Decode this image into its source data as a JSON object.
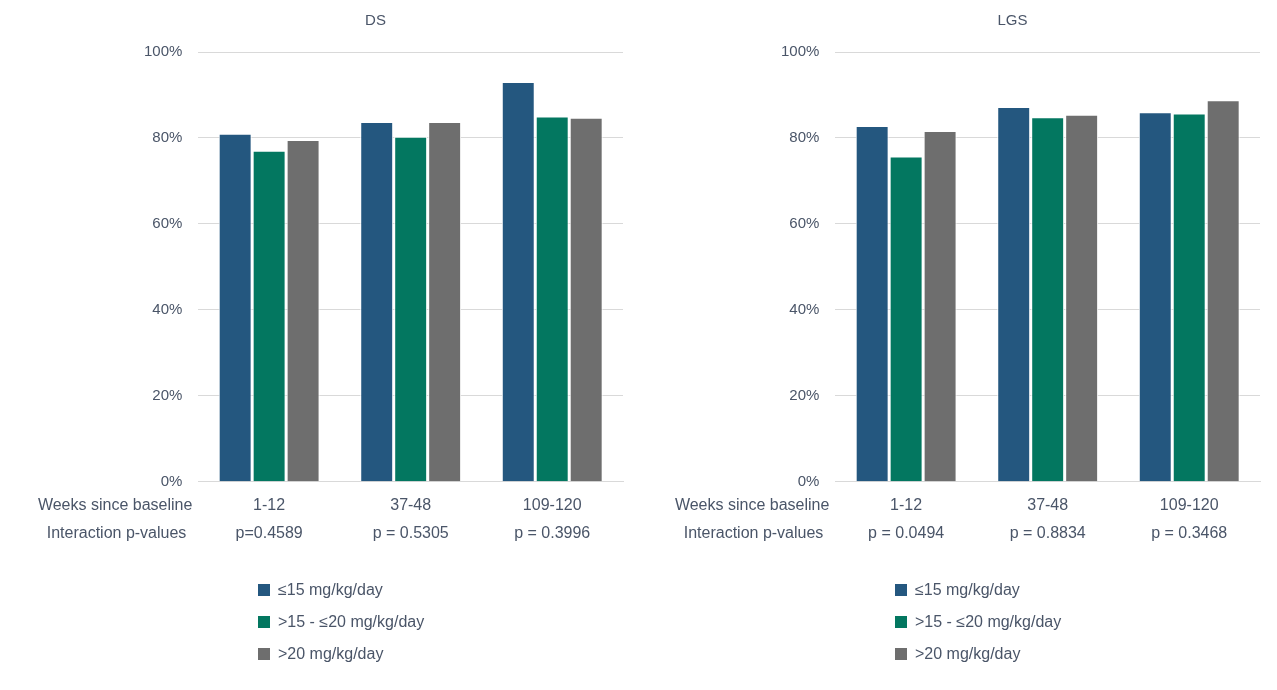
{
  "chart_data": [
    {
      "type": "bar",
      "title": "DS",
      "xlabel": "Weeks since baseline",
      "categories": [
        "1-12",
        "37-48",
        "109-120"
      ],
      "series": [
        {
          "name": "≤15 mg/kg/day",
          "color": "#24577f",
          "values": [
            81,
            83.7,
            93
          ]
        },
        {
          "name": ">15 - ≤20 mg/kg/day",
          "color": "#037760",
          "values": [
            77,
            80.3,
            85
          ]
        },
        {
          "name": ">20 mg/kg/day",
          "color": "#6e6e6e",
          "values": [
            79.5,
            83.7,
            84.7
          ]
        }
      ],
      "ylim": [
        0,
        100
      ],
      "yticks": [
        {
          "value": 0,
          "label": "0%"
        },
        {
          "value": 20,
          "label": "20%"
        },
        {
          "value": 40,
          "label": "40%"
        },
        {
          "value": 60,
          "label": "60%"
        },
        {
          "value": 80,
          "label": "80%"
        },
        {
          "value": 100,
          "label": "100%"
        }
      ],
      "grid": "y",
      "legend": "bottom",
      "annotations": [
        "Interaction p-values",
        "p=0.4589",
        "p = 0.5305",
        "p = 0.3996"
      ]
    },
    {
      "type": "bar",
      "title": "LGS",
      "xlabel": "Weeks since baseline",
      "categories": [
        "1-12",
        "37-48",
        "109-120"
      ],
      "series": [
        {
          "name": "≤15 mg/kg/day",
          "color": "#24577f",
          "values": [
            82.8,
            87.2,
            86
          ]
        },
        {
          "name": ">15 - ≤20 mg/kg/day",
          "color": "#037760",
          "values": [
            75.7,
            84.8,
            85.7
          ]
        },
        {
          "name": ">20 mg/kg/day",
          "color": "#6e6e6e",
          "values": [
            81.6,
            85.4,
            88.8
          ]
        }
      ],
      "ylim": [
        0,
        100
      ],
      "yticks": [
        {
          "value": 0,
          "label": "0%"
        },
        {
          "value": 20,
          "label": "20%"
        },
        {
          "value": 40,
          "label": "40%"
        },
        {
          "value": 60,
          "label": "60%"
        },
        {
          "value": 80,
          "label": "80%"
        },
        {
          "value": 100,
          "label": "100%"
        }
      ],
      "grid": "y",
      "legend": "bottom",
      "annotations": [
        "Interaction p-values",
        "p = 0.0494",
        "p = 0.8834",
        "p = 0.3468"
      ]
    }
  ]
}
